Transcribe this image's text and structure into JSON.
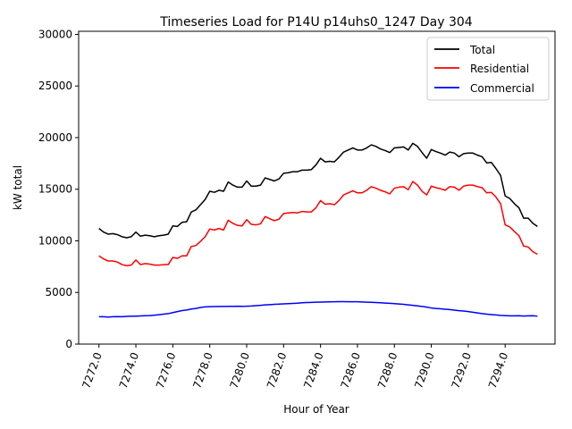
{
  "chart_data": {
    "type": "line",
    "title": "Timeseries Load for P14U p14uhs0_1247  Day 304",
    "xlabel": "Hour of Year",
    "ylabel": "kW total",
    "xlim": [
      7270.9,
      7296.7
    ],
    "ylim": [
      0,
      30300
    ],
    "x_start": 7272.0,
    "x_step": 0.25,
    "x_ticks": [
      7272,
      7274,
      7276,
      7278,
      7280,
      7282,
      7284,
      7286,
      7288,
      7290,
      7292,
      7294
    ],
    "x_tick_labels": [
      "7272.0",
      "7274.0",
      "7276.0",
      "7278.0",
      "7280.0",
      "7282.0",
      "7284.0",
      "7286.0",
      "7288.0",
      "7290.0",
      "7292.0",
      "7294.0"
    ],
    "y_ticks": [
      0,
      5000,
      10000,
      15000,
      20000,
      25000,
      30000
    ],
    "y_tick_labels": [
      "0",
      "5000",
      "10000",
      "15000",
      "20000",
      "25000",
      "30000"
    ],
    "legend_position": "top-right",
    "series": [
      {
        "name": "Total",
        "color": "#000000",
        "values": [
          11200,
          10850,
          10650,
          10700,
          10600,
          10400,
          10300,
          10400,
          10850,
          10450,
          10550,
          10500,
          10400,
          10500,
          10550,
          10650,
          11450,
          11400,
          11800,
          11850,
          12800,
          13000,
          13500,
          14000,
          14800,
          14700,
          14900,
          14800,
          15700,
          15400,
          15200,
          15200,
          15800,
          15300,
          15300,
          15400,
          16100,
          15950,
          15800,
          16000,
          16550,
          16600,
          16700,
          16700,
          16850,
          16850,
          16900,
          17350,
          18000,
          17650,
          17700,
          17650,
          18100,
          18600,
          18800,
          19000,
          18800,
          18800,
          19000,
          19300,
          19150,
          18900,
          18750,
          18550,
          19000,
          19050,
          19100,
          18800,
          19450,
          19150,
          18550,
          18000,
          18850,
          18650,
          18500,
          18300,
          18600,
          18500,
          18150,
          18450,
          18500,
          18500,
          18300,
          18150,
          17550,
          17600,
          17000,
          16350,
          14350,
          14100,
          13600,
          13200,
          12200,
          12200,
          11700,
          11400
        ]
      },
      {
        "name": "Residential",
        "color": "#ff0000",
        "values": [
          8550,
          8250,
          8050,
          8050,
          7950,
          7700,
          7600,
          7650,
          8150,
          7700,
          7800,
          7750,
          7650,
          7650,
          7700,
          7700,
          8400,
          8300,
          8550,
          8550,
          9450,
          9550,
          9950,
          10400,
          11150,
          11050,
          11200,
          11050,
          12000,
          11700,
          11500,
          11450,
          12050,
          11600,
          11550,
          11650,
          12350,
          12150,
          11950,
          12100,
          12650,
          12700,
          12750,
          12700,
          12850,
          12800,
          12800,
          13200,
          13900,
          13550,
          13600,
          13500,
          13900,
          14450,
          14650,
          14850,
          14650,
          14650,
          14900,
          15250,
          15100,
          14900,
          14750,
          14550,
          15100,
          15200,
          15250,
          14950,
          15750,
          15400,
          14800,
          14450,
          15300,
          15150,
          15050,
          14900,
          15250,
          15200,
          14900,
          15300,
          15400,
          15400,
          15250,
          15150,
          14650,
          14700,
          14250,
          13600,
          11550,
          11350,
          10900,
          10500,
          9500,
          9400,
          8950,
          8700
        ]
      },
      {
        "name": "Commercial",
        "color": "#0000ff",
        "values": [
          2650,
          2650,
          2620,
          2650,
          2660,
          2650,
          2680,
          2700,
          2700,
          2730,
          2750,
          2760,
          2800,
          2850,
          2900,
          2950,
          3050,
          3150,
          3250,
          3300,
          3400,
          3450,
          3550,
          3600,
          3620,
          3640,
          3650,
          3650,
          3660,
          3660,
          3670,
          3660,
          3670,
          3690,
          3720,
          3750,
          3800,
          3820,
          3850,
          3870,
          3900,
          3920,
          3940,
          3960,
          4000,
          4020,
          4040,
          4060,
          4070,
          4080,
          4090,
          4100,
          4110,
          4110,
          4100,
          4100,
          4100,
          4080,
          4060,
          4050,
          4030,
          4000,
          3970,
          3950,
          3920,
          3880,
          3850,
          3800,
          3750,
          3700,
          3650,
          3580,
          3500,
          3450,
          3420,
          3380,
          3340,
          3290,
          3240,
          3200,
          3150,
          3080,
          3020,
          2950,
          2900,
          2860,
          2820,
          2780,
          2760,
          2740,
          2740,
          2750,
          2720,
          2740,
          2750,
          2700
        ]
      }
    ]
  }
}
